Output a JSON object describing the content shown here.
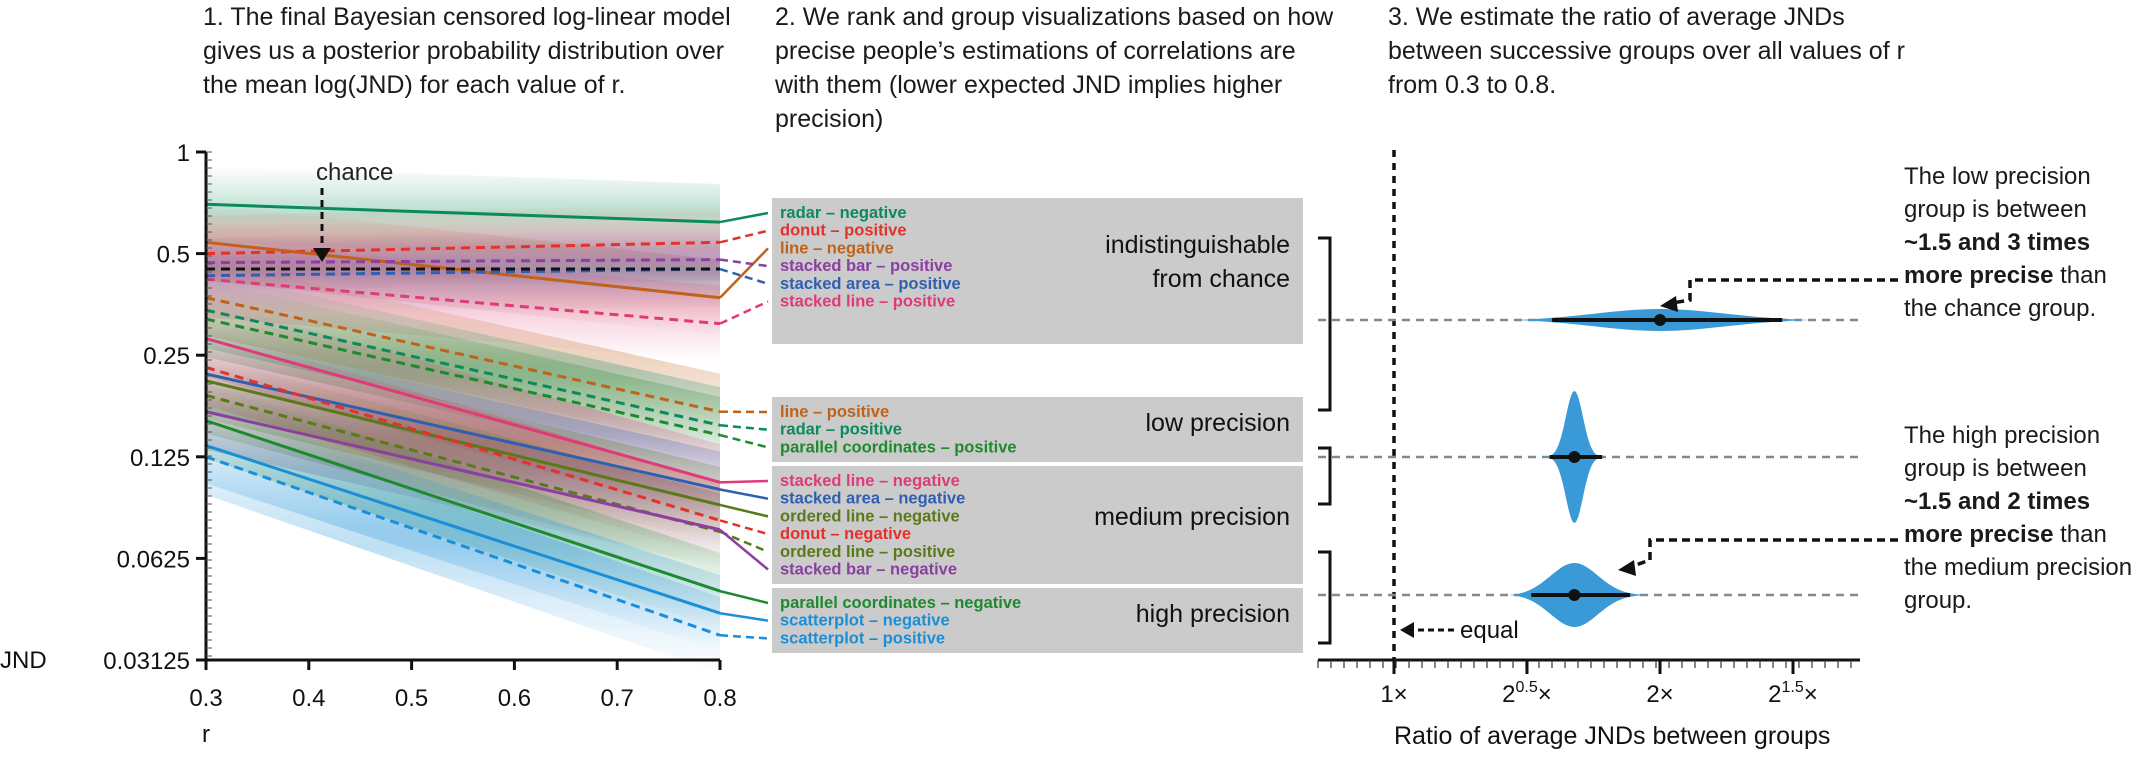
{
  "captions": {
    "step1": "1. The final Bayesian censored log-linear model gives us a posterior probability distribution over the mean log(JND) for each value of r.",
    "step2": "2. We rank and group visualizations based on how precise people’s estimations of correlations are with them (lower expected JND implies higher precision)",
    "step3": "3. We estimate the ratio of average JNDs between successive groups over all values of r from 0.3 to 0.8."
  },
  "notes": {
    "low_pre": "The low precision group is between ",
    "low_bold": "~1.5 and 3 times more precise",
    "low_post": " than the chance group.",
    "high_pre": "The high precision group is between ",
    "high_bold": "~1.5 and 2 times more precise",
    "high_post": " than the medium precision group."
  },
  "colors": {
    "radar": "#0b8a5a",
    "donut": "#e4312b",
    "line": "#c0621a",
    "stacked_bar": "#8b3fa0",
    "stacked_area": "#2f5fb0",
    "stacked_line": "#df3a7a",
    "parallel": "#1e8a2e",
    "ordered_line": "#5a7a1a",
    "scatterplot": "#1a8fd8",
    "violin": "#3a9ad8",
    "group_box": "#cbcbcb"
  },
  "chart_data": [
    {
      "type": "line",
      "xlabel": "r",
      "ylabel": "JND",
      "x_ticks": [
        "0.3",
        "0.4",
        "0.5",
        "0.6",
        "0.7",
        "0.8"
      ],
      "y_ticks": [
        "1",
        "0.5",
        "0.25",
        "0.125",
        "0.0625",
        "0.03125"
      ],
      "y_scale": "log2",
      "xlim": [
        0.3,
        0.8
      ],
      "ylim": [
        0.03125,
        1
      ],
      "chance_label": "chance",
      "chance_value": 0.45,
      "series": [
        {
          "name": "radar – negative",
          "color": "radar",
          "dashed": false,
          "y03": 0.7,
          "y08": 0.62
        },
        {
          "name": "donut – positive",
          "color": "donut",
          "dashed": true,
          "y03": 0.5,
          "y08": 0.54
        },
        {
          "name": "line – negative",
          "color": "line",
          "dashed": false,
          "y03": 0.54,
          "y08": 0.37
        },
        {
          "name": "stacked bar – positive",
          "color": "stacked_bar",
          "dashed": true,
          "y03": 0.47,
          "y08": 0.48
        },
        {
          "name": "stacked area – positive",
          "color": "stacked_area",
          "dashed": true,
          "y03": 0.43,
          "y08": 0.45
        },
        {
          "name": "stacked line – positive",
          "color": "stacked_line",
          "dashed": true,
          "y03": 0.42,
          "y08": 0.31
        },
        {
          "name": "line – positive",
          "color": "line",
          "dashed": true,
          "y03": 0.37,
          "y08": 0.17
        },
        {
          "name": "radar – positive",
          "color": "radar",
          "dashed": true,
          "y03": 0.34,
          "y08": 0.155
        },
        {
          "name": "parallel coordinates – positive",
          "color": "parallel",
          "dashed": true,
          "y03": 0.32,
          "y08": 0.145
        },
        {
          "name": "stacked line – negative",
          "color": "stacked_line",
          "dashed": false,
          "y03": 0.28,
          "y08": 0.105
        },
        {
          "name": "stacked area – negative",
          "color": "stacked_area",
          "dashed": false,
          "y03": 0.22,
          "y08": 0.1
        },
        {
          "name": "ordered line – negative",
          "color": "ordered_line",
          "dashed": false,
          "y03": 0.21,
          "y08": 0.09
        },
        {
          "name": "donut – negative",
          "color": "donut",
          "dashed": true,
          "y03": 0.23,
          "y08": 0.081
        },
        {
          "name": "ordered line – positive",
          "color": "ordered_line",
          "dashed": true,
          "y03": 0.19,
          "y08": 0.075
        },
        {
          "name": "stacked bar – negative",
          "color": "stacked_bar",
          "dashed": false,
          "y03": 0.17,
          "y08": 0.076
        },
        {
          "name": "parallel coordinates – negative",
          "color": "parallel",
          "dashed": false,
          "y03": 0.16,
          "y08": 0.05
        },
        {
          "name": "scatterplot – negative",
          "color": "scatterplot",
          "dashed": false,
          "y03": 0.135,
          "y08": 0.043
        },
        {
          "name": "scatterplot – positive",
          "color": "scatterplot",
          "dashed": true,
          "y03": 0.125,
          "y08": 0.037
        }
      ],
      "groups": [
        {
          "label_lines": [
            "indistinguishable",
            "from chance"
          ],
          "items": [
            "radar – negative",
            "donut – positive",
            "line – negative",
            "stacked bar – positive",
            "stacked area – positive",
            "stacked line – positive"
          ]
        },
        {
          "label_lines": [
            "low precision"
          ],
          "items": [
            "line – positive",
            "radar – positive",
            "parallel coordinates – positive"
          ]
        },
        {
          "label_lines": [
            "medium precision"
          ],
          "items": [
            "stacked line – negative",
            "stacked area – negative",
            "ordered line – negative",
            "donut – negative",
            "ordered line – positive",
            "stacked bar – negative"
          ]
        },
        {
          "label_lines": [
            "high precision"
          ],
          "items": [
            "parallel coordinates – negative",
            "scatterplot – negative",
            "scatterplot – positive"
          ]
        }
      ]
    },
    {
      "type": "violin",
      "xlabel": "Ratio of average JNDs between groups",
      "x_scale": "log2",
      "xlim": [
        1,
        2.9
      ],
      "x_ticks": [
        {
          "value": 1,
          "base": "1×",
          "sup": "",
          "suffix": ""
        },
        {
          "value": 1.4142,
          "base": "2",
          "sup": "0.5",
          "suffix": "×"
        },
        {
          "value": 2,
          "base": "2×",
          "sup": "",
          "suffix": ""
        },
        {
          "value": 2.8284,
          "base": "2",
          "sup": "1.5",
          "suffix": "×"
        }
      ],
      "reference_label": "equal",
      "comparisons": [
        {
          "pair": "chance vs low precision",
          "median": 2.0,
          "ci": [
            1.51,
            2.75
          ],
          "extent": [
            1.38,
            2.95
          ]
        },
        {
          "pair": "low vs medium precision",
          "median": 1.6,
          "ci": [
            1.5,
            1.72
          ],
          "extent": [
            1.45,
            1.75
          ]
        },
        {
          "pair": "medium vs high precision",
          "median": 1.6,
          "ci": [
            1.43,
            1.85
          ],
          "extent": [
            1.35,
            1.95
          ]
        }
      ]
    }
  ]
}
